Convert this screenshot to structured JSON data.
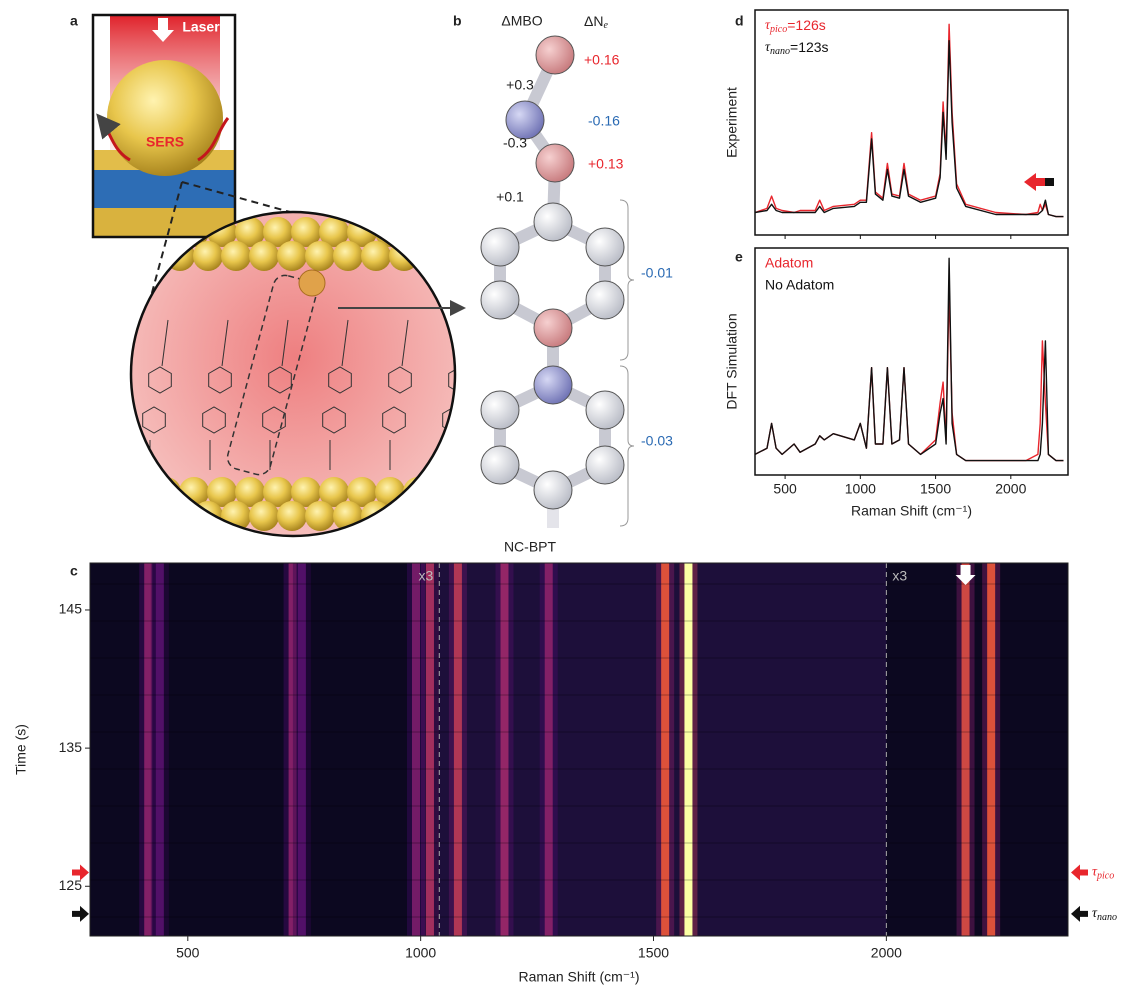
{
  "panel_labels": [
    "a",
    "b",
    "c",
    "d",
    "e"
  ],
  "panel_a": {
    "laser": "Laser",
    "sers": "SERS"
  },
  "panel_b": {
    "header_mbo": "ΔMBO",
    "header_ne": "ΔN",
    "header_ne_sub": "e",
    "mbo": [
      "+0.3",
      "-0.3",
      "+0.1"
    ],
    "ne": [
      "+0.16",
      "-0.16",
      "+0.13",
      "-0.01",
      "-0.03"
    ],
    "molecule": "NC-BPT"
  },
  "chart_data": [
    {
      "type": "heatmap",
      "x_label": "Raman Shift (cm⁻¹)",
      "y_label": "Time (s)",
      "xlim": [
        290,
        2390
      ],
      "xticks": [
        500,
        1000,
        1500,
        2000
      ],
      "ylim": [
        121.4,
        148.4
      ],
      "yticks": [
        125,
        135,
        145
      ],
      "bands": {
        "x": [
          415,
          440,
          725,
          745,
          990,
          1020,
          1080,
          1180,
          1275,
          1525,
          1575,
          2170,
          2225
        ],
        "values": [
          0.45,
          0.3,
          0.45,
          0.3,
          0.4,
          0.55,
          0.6,
          0.5,
          0.45,
          0.75,
          1.0,
          0.7,
          0.75
        ]
      },
      "dividers": [
        {
          "x": 1040,
          "label": "x3"
        },
        {
          "x": 2000,
          "label": "x3"
        }
      ],
      "markers": [
        {
          "label": {
            "symbol": "τ",
            "sub": "pico"
          },
          "value": 126,
          "color": "#e8262d"
        },
        {
          "label": {
            "symbol": "τ",
            "sub": "nano"
          },
          "value": 123,
          "color": "#111111"
        }
      ]
    },
    {
      "type": "line",
      "y_label": "Experiment",
      "xlim": [
        300,
        2380
      ],
      "xticks": [
        500,
        1000,
        1500,
        2000
      ],
      "xtick_labels": false,
      "ylim": [
        -0.05,
        1.05
      ],
      "x": [
        300,
        380,
        410,
        440,
        480,
        560,
        600,
        700,
        730,
        760,
        820,
        960,
        1000,
        1040,
        1075,
        1100,
        1150,
        1180,
        1210,
        1260,
        1290,
        1320,
        1400,
        1500,
        1530,
        1550,
        1570,
        1590,
        1610,
        1640,
        1700,
        1900,
        2100,
        2180,
        2195,
        2210,
        2230,
        2250,
        2300,
        2350
      ],
      "series": [
        {
          "name": {
            "symbol": "τ",
            "sub": "pico",
            "suffix": "=126s"
          },
          "color": "#e8262d",
          "values": [
            0.06,
            0.08,
            0.14,
            0.08,
            0.07,
            0.06,
            0.07,
            0.07,
            0.12,
            0.07,
            0.09,
            0.1,
            0.12,
            0.12,
            0.45,
            0.16,
            0.13,
            0.3,
            0.15,
            0.14,
            0.3,
            0.15,
            0.12,
            0.14,
            0.25,
            0.6,
            0.35,
            0.98,
            0.55,
            0.2,
            0.1,
            0.06,
            0.05,
            0.06,
            0.1,
            0.07,
            0.1,
            0.05,
            0.04,
            0.04
          ]
        },
        {
          "name": {
            "symbol": "τ",
            "sub": "nano",
            "suffix": "=123s"
          },
          "color": "#111111",
          "values": [
            0.06,
            0.07,
            0.1,
            0.07,
            0.06,
            0.06,
            0.06,
            0.06,
            0.09,
            0.06,
            0.08,
            0.09,
            0.11,
            0.11,
            0.42,
            0.15,
            0.12,
            0.27,
            0.14,
            0.13,
            0.27,
            0.14,
            0.11,
            0.13,
            0.23,
            0.55,
            0.32,
            0.9,
            0.5,
            0.18,
            0.09,
            0.05,
            0.05,
            0.05,
            0.06,
            0.07,
            0.12,
            0.05,
            0.04,
            0.04
          ]
        }
      ]
    },
    {
      "type": "line",
      "y_label": "DFT Simulation",
      "x_label": "Raman Shift (cm⁻¹)",
      "xlim": [
        300,
        2380
      ],
      "xticks": [
        500,
        1000,
        1500,
        2000
      ],
      "xtick_labels": true,
      "ylim": [
        -0.05,
        1.05
      ],
      "x": [
        300,
        380,
        410,
        440,
        480,
        560,
        600,
        700,
        730,
        760,
        820,
        960,
        1000,
        1040,
        1075,
        1100,
        1150,
        1180,
        1210,
        1260,
        1290,
        1320,
        1400,
        1500,
        1530,
        1550,
        1570,
        1590,
        1610,
        1640,
        1700,
        1900,
        2100,
        2180,
        2195,
        2210,
        2230,
        2250,
        2300,
        2350
      ],
      "series": [
        {
          "name": "Adatom",
          "color": "#e8262d",
          "values": [
            0.05,
            0.08,
            0.2,
            0.08,
            0.05,
            0.1,
            0.06,
            0.1,
            0.14,
            0.12,
            0.15,
            0.12,
            0.2,
            0.08,
            0.47,
            0.1,
            0.1,
            0.47,
            0.1,
            0.12,
            0.47,
            0.1,
            0.05,
            0.12,
            0.3,
            0.4,
            0.12,
            0.85,
            0.25,
            0.05,
            0.02,
            0.02,
            0.02,
            0.05,
            0.2,
            0.6,
            0.3,
            0.05,
            0.02,
            0.02
          ]
        },
        {
          "name": "No Adatom",
          "color": "#111111",
          "values": [
            0.05,
            0.08,
            0.2,
            0.08,
            0.05,
            0.1,
            0.06,
            0.1,
            0.14,
            0.12,
            0.15,
            0.12,
            0.2,
            0.08,
            0.47,
            0.1,
            0.1,
            0.47,
            0.1,
            0.12,
            0.47,
            0.1,
            0.05,
            0.1,
            0.25,
            0.32,
            0.1,
            1.0,
            0.2,
            0.05,
            0.02,
            0.02,
            0.02,
            0.02,
            0.05,
            0.2,
            0.6,
            0.05,
            0.02,
            0.02
          ]
        }
      ]
    }
  ]
}
